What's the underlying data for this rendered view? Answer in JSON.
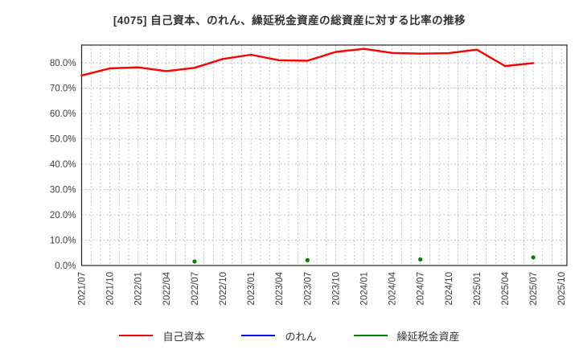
{
  "title": "[4075]  自己資本、のれん、繰延税金資産の総資産に対する比率の推移",
  "chart_data": {
    "type": "line",
    "x_labels": [
      "2021/07",
      "2021/10",
      "2022/01",
      "2022/04",
      "2022/07",
      "2022/10",
      "2023/01",
      "2023/04",
      "2023/07",
      "2023/10",
      "2024/01",
      "2024/04",
      "2024/07",
      "2024/10",
      "2025/01",
      "2025/04",
      "2025/07",
      "2025/10"
    ],
    "series": [
      {
        "name": "自己資本",
        "color": "#ff0000",
        "style": "line",
        "values": [
          75.0,
          77.8,
          78.2,
          76.7,
          78.0,
          81.5,
          83.2,
          81.0,
          80.8,
          84.3,
          85.5,
          83.9,
          83.6,
          83.8,
          85.2,
          78.7,
          79.9,
          null
        ]
      },
      {
        "name": "のれん",
        "color": "#0000ff",
        "style": "line",
        "values": [
          null,
          null,
          null,
          null,
          null,
          null,
          null,
          null,
          null,
          null,
          null,
          null,
          null,
          null,
          null,
          null,
          null,
          null
        ]
      },
      {
        "name": "繰延税金資産",
        "color": "#008000",
        "style": "marker",
        "values": [
          null,
          null,
          null,
          null,
          1.6,
          null,
          null,
          null,
          2.1,
          null,
          null,
          null,
          2.4,
          null,
          null,
          null,
          3.2,
          null
        ]
      }
    ],
    "ylim": [
      0,
      87
    ],
    "yticks": [
      0,
      10,
      20,
      30,
      40,
      50,
      60,
      70,
      80
    ],
    "ytick_labels": [
      "0.0%",
      "10.0%",
      "20.0%",
      "30.0%",
      "40.0%",
      "50.0%",
      "60.0%",
      "70.0%",
      "80.0%"
    ],
    "grid": "dotted",
    "legend_position": "bottom"
  }
}
